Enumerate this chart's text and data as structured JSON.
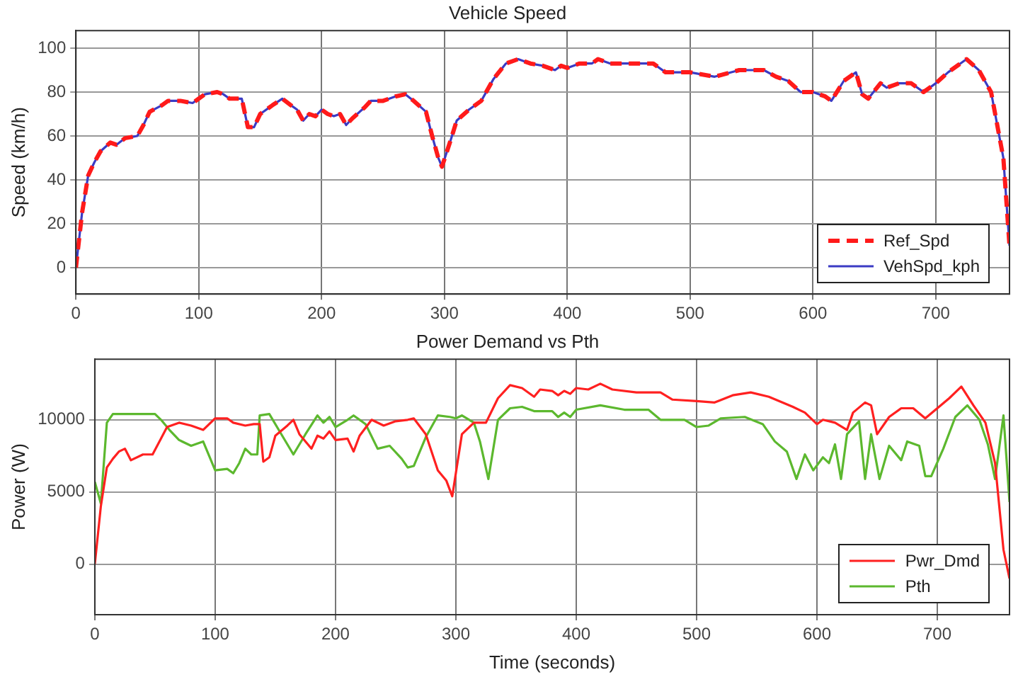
{
  "chart_data": [
    {
      "type": "line",
      "title": "Vehicle Speed",
      "ylabel": "Speed (km/h)",
      "xlim": [
        0,
        760
      ],
      "xticks": [
        0,
        100,
        200,
        300,
        400,
        500,
        600,
        700
      ],
      "ylim": [
        -12,
        108
      ],
      "yticks": [
        0,
        20,
        40,
        60,
        80,
        100
      ],
      "grid": true,
      "legend": "bottom right",
      "series": [
        {
          "name": "Ref_Spd",
          "color": "#ff1a1a",
          "line_style": "dashed",
          "x": [
            0,
            5,
            10,
            15,
            20,
            28,
            33,
            40,
            50,
            55,
            60,
            70,
            75,
            85,
            95,
            100,
            105,
            115,
            120,
            125,
            135,
            140,
            145,
            150,
            160,
            168,
            175,
            180,
            185,
            190,
            195,
            200,
            205,
            210,
            215,
            220,
            225,
            235,
            240,
            250,
            260,
            268,
            275,
            285,
            290,
            295,
            298,
            305,
            310,
            320,
            330,
            340,
            350,
            360,
            370,
            380,
            390,
            395,
            400,
            410,
            420,
            425,
            435,
            450,
            470,
            480,
            500,
            520,
            540,
            560,
            570,
            580,
            590,
            600,
            610,
            615,
            625,
            635,
            640,
            645,
            655,
            660,
            670,
            680,
            690,
            700,
            710,
            720,
            725,
            735,
            745,
            755,
            760
          ],
          "values": [
            0,
            25,
            42,
            48,
            53,
            57,
            56,
            59,
            60,
            65,
            71,
            74,
            76,
            76,
            75,
            77,
            79,
            80,
            79,
            77,
            77,
            64,
            64,
            70,
            74,
            77,
            74,
            72,
            67,
            70,
            69,
            72,
            70,
            69,
            70,
            65,
            68,
            73,
            76,
            76,
            78,
            79,
            76,
            71,
            60,
            50,
            46,
            58,
            67,
            72,
            76,
            86,
            93,
            95,
            93,
            92,
            90,
            92,
            91,
            93,
            93,
            95,
            93,
            93,
            93,
            89,
            89,
            87,
            90,
            90,
            87,
            85,
            80,
            80,
            78,
            76,
            85,
            89,
            79,
            77,
            84,
            82,
            84,
            84,
            80,
            84,
            89,
            93,
            95,
            90,
            80,
            50,
            10
          ]
        },
        {
          "name": "VehSpd_kph",
          "color": "#3b3bc4",
          "line_style": "solid",
          "x": [
            0,
            5,
            10,
            15,
            20,
            28,
            33,
            40,
            50,
            55,
            60,
            70,
            75,
            85,
            95,
            100,
            105,
            115,
            120,
            125,
            135,
            140,
            145,
            150,
            160,
            168,
            175,
            180,
            185,
            190,
            195,
            200,
            205,
            210,
            215,
            220,
            225,
            235,
            240,
            250,
            260,
            268,
            275,
            285,
            290,
            295,
            298,
            305,
            310,
            320,
            330,
            340,
            350,
            360,
            370,
            380,
            390,
            395,
            400,
            410,
            420,
            425,
            435,
            450,
            470,
            480,
            500,
            520,
            540,
            560,
            570,
            580,
            590,
            600,
            610,
            615,
            625,
            635,
            640,
            645,
            655,
            660,
            670,
            680,
            690,
            700,
            710,
            720,
            725,
            735,
            745,
            755,
            760
          ],
          "values": [
            0,
            25,
            42,
            48,
            53,
            57,
            56,
            59,
            60,
            65,
            71,
            74,
            76,
            76,
            75,
            77,
            79,
            80,
            79,
            77,
            77,
            64,
            64,
            70,
            74,
            77,
            74,
            72,
            67,
            70,
            69,
            72,
            70,
            69,
            70,
            65,
            68,
            73,
            76,
            76,
            78,
            79,
            76,
            71,
            60,
            50,
            46,
            58,
            67,
            72,
            76,
            86,
            93,
            95,
            93,
            92,
            90,
            92,
            91,
            93,
            93,
            95,
            93,
            93,
            93,
            89,
            89,
            87,
            90,
            90,
            87,
            85,
            80,
            80,
            78,
            76,
            85,
            89,
            79,
            77,
            84,
            82,
            84,
            84,
            80,
            84,
            89,
            93,
            95,
            90,
            80,
            50,
            10
          ]
        }
      ]
    },
    {
      "type": "line",
      "title": "Power Demand vs Pth",
      "xlabel": "Time (seconds)",
      "ylabel": "Power (W)",
      "xlim": [
        0,
        760
      ],
      "xticks": [
        0,
        100,
        200,
        300,
        400,
        500,
        600,
        700
      ],
      "ylim": [
        -3500,
        14200
      ],
      "yticks": [
        0,
        5000,
        10000
      ],
      "grid": true,
      "legend": "bottom right",
      "series": [
        {
          "name": "Pwr_Dmd",
          "color": "#ff2020",
          "x": [
            0,
            5,
            10,
            15,
            20,
            25,
            30,
            40,
            48,
            55,
            60,
            70,
            80,
            90,
            100,
            110,
            115,
            125,
            132,
            137,
            140,
            145,
            150,
            160,
            165,
            170,
            180,
            185,
            190,
            195,
            200,
            210,
            215,
            220,
            230,
            240,
            250,
            260,
            265,
            275,
            285,
            292,
            297,
            305,
            315,
            325,
            335,
            345,
            355,
            365,
            370,
            380,
            385,
            390,
            395,
            400,
            410,
            420,
            430,
            450,
            460,
            470,
            480,
            500,
            515,
            530,
            545,
            560,
            580,
            590,
            600,
            605,
            615,
            625,
            630,
            640,
            645,
            650,
            660,
            670,
            680,
            690,
            700,
            710,
            720,
            730,
            740,
            748,
            755,
            760
          ],
          "values": [
            0,
            4000,
            6700,
            7300,
            7800,
            8000,
            7200,
            7600,
            7600,
            8700,
            9500,
            9800,
            9600,
            9300,
            10100,
            10100,
            9800,
            9600,
            9700,
            9700,
            7100,
            7400,
            8900,
            9600,
            10000,
            9000,
            8000,
            8900,
            8700,
            9200,
            8600,
            8700,
            7800,
            8900,
            10000,
            9600,
            9900,
            10000,
            10100,
            9000,
            6500,
            5800,
            4700,
            9000,
            9800,
            9800,
            11500,
            12400,
            12200,
            11600,
            12100,
            12000,
            11700,
            12000,
            11800,
            12200,
            12100,
            12500,
            12100,
            11900,
            11900,
            11900,
            11400,
            11300,
            11200,
            11700,
            11900,
            11600,
            10900,
            10500,
            9700,
            10000,
            9800,
            9300,
            10500,
            11200,
            11000,
            9000,
            10200,
            10800,
            10800,
            10100,
            10800,
            11500,
            12300,
            11000,
            9800,
            7000,
            1000,
            -1000
          ]
        },
        {
          "name": "Pth",
          "color": "#5cb82e",
          "x": [
            0,
            5,
            10,
            15,
            30,
            50,
            55,
            62,
            70,
            80,
            90,
            100,
            110,
            115,
            120,
            125,
            130,
            135,
            137,
            145,
            155,
            165,
            175,
            185,
            190,
            195,
            200,
            210,
            215,
            225,
            235,
            245,
            255,
            260,
            265,
            275,
            285,
            295,
            300,
            305,
            315,
            320,
            327,
            335,
            345,
            355,
            365,
            380,
            385,
            390,
            395,
            400,
            420,
            440,
            460,
            470,
            490,
            500,
            510,
            520,
            540,
            555,
            565,
            575,
            583,
            590,
            597,
            605,
            610,
            615,
            620,
            625,
            635,
            640,
            645,
            652,
            660,
            670,
            675,
            685,
            690,
            695,
            705,
            715,
            725,
            735,
            742,
            748,
            755,
            760
          ],
          "values": [
            5700,
            4200,
            9800,
            10400,
            10400,
            10400,
            10000,
            9300,
            8600,
            8200,
            8500,
            6500,
            6600,
            6300,
            7000,
            8000,
            7600,
            7600,
            10300,
            10400,
            9000,
            7600,
            9000,
            10300,
            9800,
            10200,
            9500,
            10000,
            10300,
            9700,
            8000,
            8200,
            7300,
            6700,
            6800,
            8800,
            10300,
            10200,
            10100,
            10300,
            9800,
            8500,
            5900,
            10000,
            10800,
            10900,
            10600,
            10600,
            10200,
            10500,
            10200,
            10700,
            11000,
            10700,
            10700,
            10000,
            10000,
            9500,
            9600,
            10100,
            10200,
            9700,
            8500,
            7800,
            5900,
            7600,
            6500,
            7400,
            7000,
            8300,
            5900,
            9000,
            9900,
            5900,
            9000,
            5900,
            8200,
            7200,
            8500,
            8200,
            6100,
            6100,
            8000,
            10200,
            11000,
            10000,
            8300,
            5900,
            10300,
            4300
          ]
        }
      ]
    }
  ]
}
